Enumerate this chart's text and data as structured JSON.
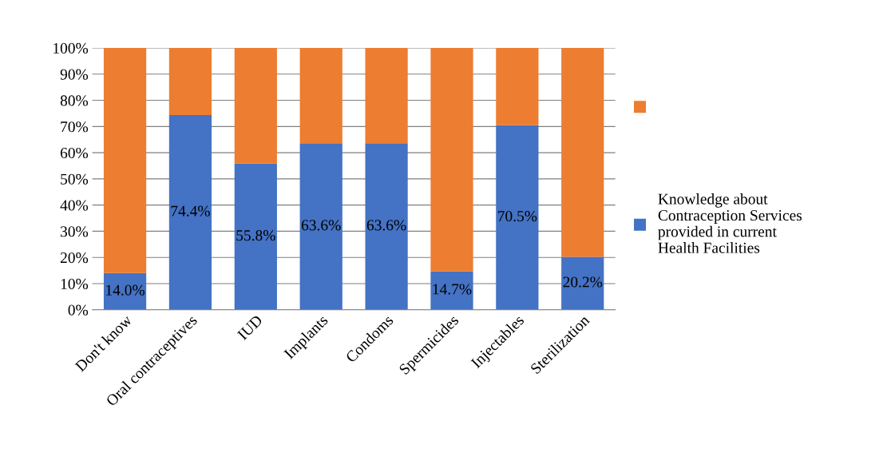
{
  "chart_data": {
    "type": "bar",
    "stacked": true,
    "categories": [
      "Don't know",
      "Oral contraceptives",
      "IUD",
      "Implants",
      "Condoms",
      "Spermicides",
      "Injectables",
      "Sterilization"
    ],
    "series": [
      {
        "name": "Knowledge about Contraception Services provided in current Health Facilities",
        "color": "#4472c4",
        "values": [
          14.0,
          74.4,
          55.8,
          63.6,
          63.6,
          14.7,
          70.5,
          20.2
        ],
        "value_labels": [
          "14.0%",
          "74.4%",
          "55.8%",
          "63.6%",
          "63.6%",
          "14.7%",
          "70.5%",
          "20.2%"
        ]
      },
      {
        "color": "#ed7d31",
        "values": [
          86.0,
          25.6,
          44.2,
          36.4,
          36.4,
          85.3,
          29.5,
          79.8
        ]
      }
    ],
    "ylim": [
      0,
      100
    ],
    "yticks": [
      {
        "value": 0,
        "label": "0%"
      },
      {
        "value": 10,
        "label": "10%"
      },
      {
        "value": 20,
        "label": "20%"
      },
      {
        "value": 30,
        "label": "30%"
      },
      {
        "value": 40,
        "label": "40%"
      },
      {
        "value": 50,
        "label": "50%"
      },
      {
        "value": 60,
        "label": "60%"
      },
      {
        "value": 70,
        "label": "70%"
      },
      {
        "value": 80,
        "label": "80%"
      },
      {
        "value": 90,
        "label": "90%"
      },
      {
        "value": 100,
        "label": "100%"
      }
    ],
    "grid": "y",
    "legend": "right"
  }
}
